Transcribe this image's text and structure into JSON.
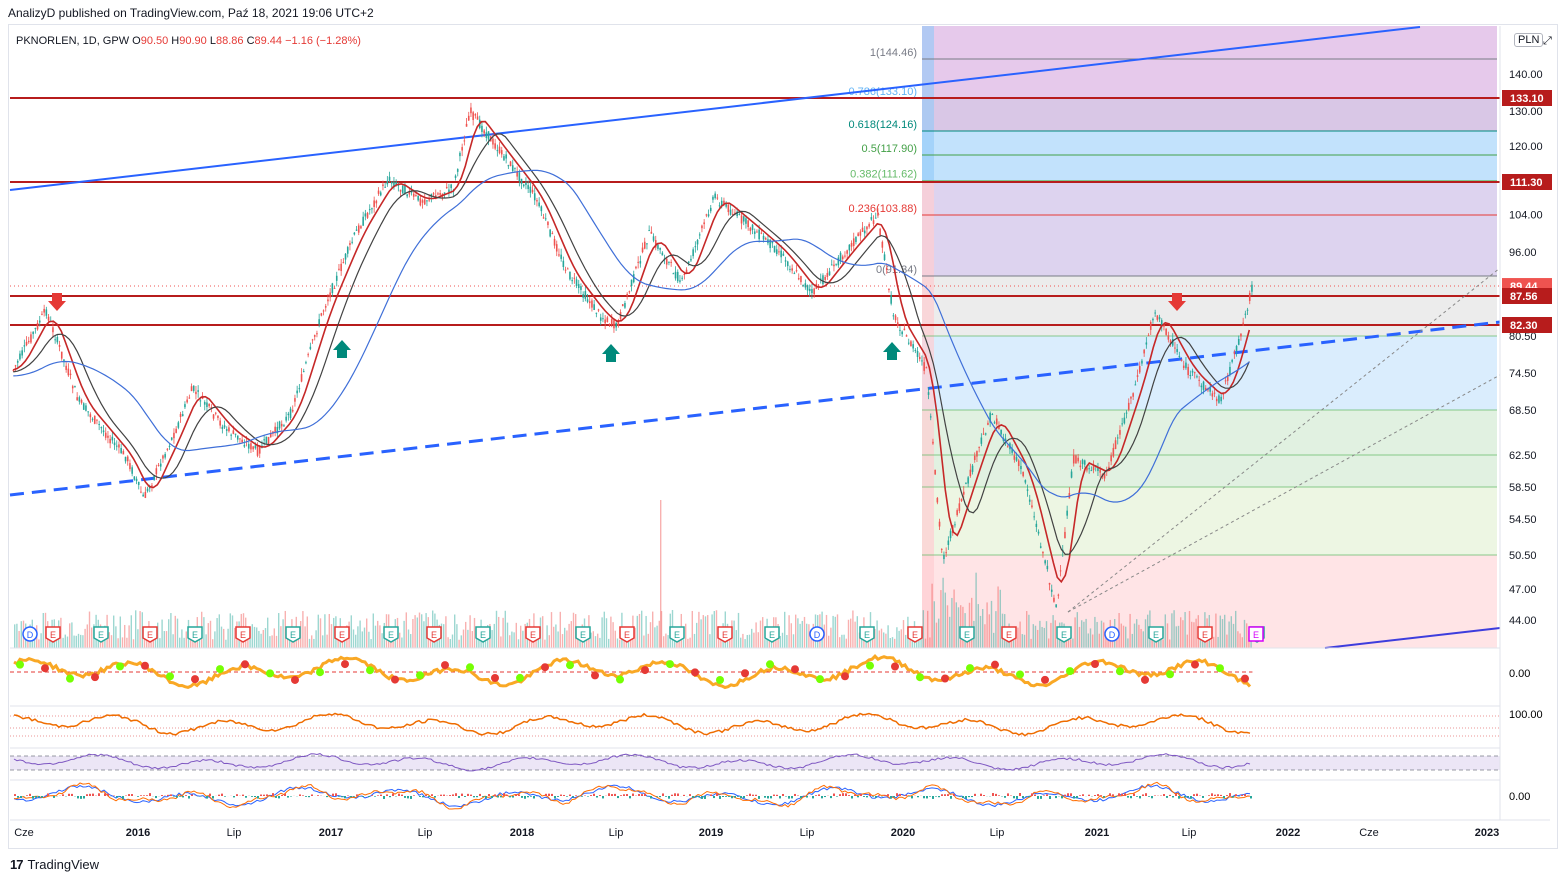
{
  "header": {
    "published": "AnalizyD published on TradingView.com, Paź 18, 2021 19:06 UTC+2"
  },
  "symbol": {
    "name": "PKNORLEN, 1D, GPW",
    "o_label": "O",
    "o": "90.50",
    "h_label": "H",
    "h": "90.90",
    "l_label": "L",
    "l": "88.86",
    "c_label": "C",
    "c": "89.44",
    "change": "−1.16 (−1.28%)"
  },
  "currency_button": "PLN",
  "expand_icon": "expand-icon",
  "brand": "TradingView",
  "colors": {
    "up": "#26a69a",
    "down": "#ef5350",
    "hline": "#b71c1c",
    "trend": "#2962ff",
    "fib_red": "#f8bbd0",
    "fib_blue": "#bbdefb",
    "fib_purple": "#d1c4e9"
  },
  "chart_data": {
    "type": "candlestick",
    "price_axis_ticks": [
      "140.00",
      "130.00",
      "120.00",
      "104.00",
      "96.00",
      "80.50",
      "74.50",
      "68.50",
      "62.50",
      "58.50",
      "54.50",
      "50.50",
      "47.00",
      "44.00"
    ],
    "price_axis_labels": [
      {
        "value": "133.10",
        "color": "#b71c1c"
      },
      {
        "value": "111.30",
        "color": "#b71c1c"
      },
      {
        "value": "89.44",
        "color": "#ef5350"
      },
      {
        "value": "87.56",
        "color": "#b71c1c"
      },
      {
        "value": "82.30",
        "color": "#b71c1c"
      }
    ],
    "horizontal_levels": [
      133.1,
      111.3,
      87.56,
      82.3
    ],
    "fib_levels": [
      {
        "label": "1(144.46)",
        "value": 144.46,
        "color": "#787b86"
      },
      {
        "label": "0.786(133.10)",
        "value": 133.1,
        "color": "#64b5f6"
      },
      {
        "label": "0.618(124.16)",
        "value": 124.16,
        "color": "#00897b"
      },
      {
        "label": "0.5(117.90)",
        "value": 117.9,
        "color": "#43a047"
      },
      {
        "label": "0.382(111.62)",
        "value": 111.62,
        "color": "#66bb6a"
      },
      {
        "label": "0.236(103.88)",
        "value": 103.88,
        "color": "#e53935"
      },
      {
        "label": "0(91.34)",
        "value": 91.34,
        "color": "#787b86"
      }
    ],
    "time_axis": [
      "Cze",
      "2016",
      "Lip",
      "2017",
      "Lip",
      "2018",
      "Lip",
      "2019",
      "Lip",
      "2020",
      "Lip",
      "2021",
      "Lip",
      "2022",
      "Cze",
      "2023"
    ],
    "osc1_label": "0.00",
    "osc2_label": "100.00",
    "osc4_label": "0.00",
    "event_markers": [
      "D",
      "E",
      "E",
      "E",
      "E",
      "E",
      "E",
      "E",
      "E",
      "E",
      "E",
      "E",
      "E",
      "E",
      "E",
      "E",
      "E",
      "D",
      "E",
      "E",
      "E",
      "E",
      "E",
      "D",
      "E",
      "E",
      "E",
      "E",
      "E",
      "E"
    ],
    "close_path": [
      [
        "2015-06",
        75
      ],
      [
        "2015-08",
        85
      ],
      [
        "2015-10",
        70
      ],
      [
        "2016-01",
        62
      ],
      [
        "2016-02",
        57
      ],
      [
        "2016-04",
        66
      ],
      [
        "2016-05",
        72
      ],
      [
        "2016-07",
        66
      ],
      [
        "2016-09",
        63
      ],
      [
        "2016-11",
        68
      ],
      [
        "2017-01",
        85
      ],
      [
        "2017-03",
        100
      ],
      [
        "2017-05",
        112
      ],
      [
        "2017-07",
        107
      ],
      [
        "2017-09",
        110
      ],
      [
        "2017-10",
        130
      ],
      [
        "2017-12",
        118
      ],
      [
        "2018-02",
        108
      ],
      [
        "2018-04",
        92
      ],
      [
        "2018-06",
        84
      ],
      [
        "2018-07",
        82
      ],
      [
        "2018-09",
        100
      ],
      [
        "2018-11",
        90
      ],
      [
        "2019-01",
        108
      ],
      [
        "2019-03",
        102
      ],
      [
        "2019-05",
        96
      ],
      [
        "2019-07",
        88
      ],
      [
        "2019-09",
        96
      ],
      [
        "2019-11",
        104
      ],
      [
        "2019-12",
        84
      ],
      [
        "2020-02",
        75
      ],
      [
        "2020-03",
        50
      ],
      [
        "2020-05",
        62
      ],
      [
        "2020-06",
        68
      ],
      [
        "2020-08",
        60
      ],
      [
        "2020-10",
        45
      ],
      [
        "2020-11",
        62
      ],
      [
        "2021-01",
        60
      ],
      [
        "2021-03",
        74
      ],
      [
        "2021-04",
        85
      ],
      [
        "2021-06",
        75
      ],
      [
        "2021-08",
        70
      ],
      [
        "2021-09",
        78
      ],
      [
        "2021-10",
        89.44
      ]
    ]
  }
}
